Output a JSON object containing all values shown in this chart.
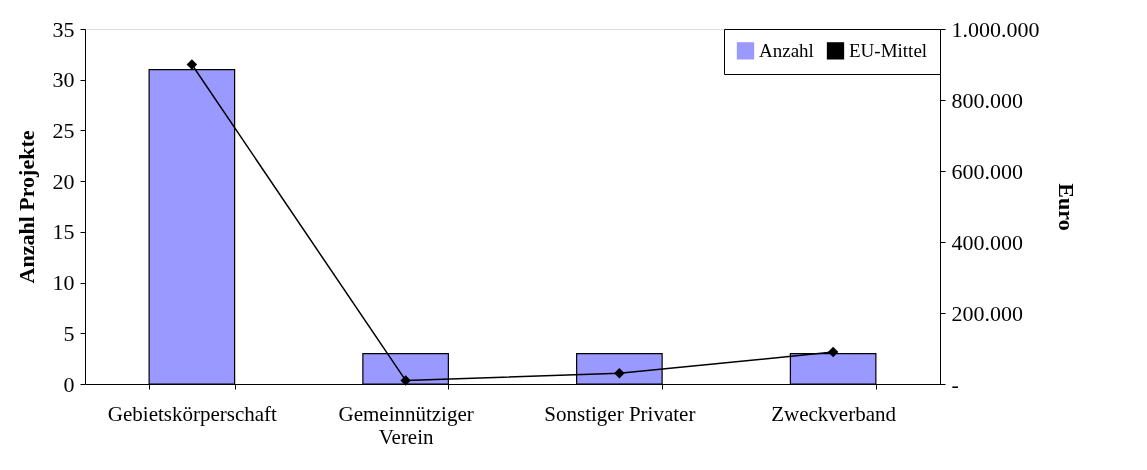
{
  "chart_data": {
    "type": "bar",
    "categories": [
      "Gebietskörperschaft",
      "Gemeinnütziger Verein",
      "Sonstiger Privater",
      "Zweckverband"
    ],
    "ylabel": "Anzahl Projekte",
    "y2label": "Euro",
    "ylim": [
      0,
      35
    ],
    "yticks": [
      0,
      5,
      10,
      15,
      20,
      25,
      30,
      35
    ],
    "y2lim": [
      0,
      1000000
    ],
    "y2ticks": [
      {
        "value": 0,
        "label": "-"
      },
      {
        "value": 200000,
        "label": "200.000"
      },
      {
        "value": 400000,
        "label": "400.000"
      },
      {
        "value": 600000,
        "label": "600.000"
      },
      {
        "value": 800000,
        "label": "800.000"
      },
      {
        "value": 1000000,
        "label": "1.000.000"
      }
    ],
    "series": [
      {
        "name": "Anzahl",
        "color": "#9999ff",
        "values": [
          31,
          3,
          3,
          3
        ]
      },
      {
        "name": "EU-Mittel",
        "type": "line",
        "axis": "y2",
        "color": "#000000",
        "marker": "diamond",
        "values": [
          900000,
          10000,
          30000,
          90000
        ]
      }
    ],
    "grid": false,
    "legend": "top right"
  }
}
